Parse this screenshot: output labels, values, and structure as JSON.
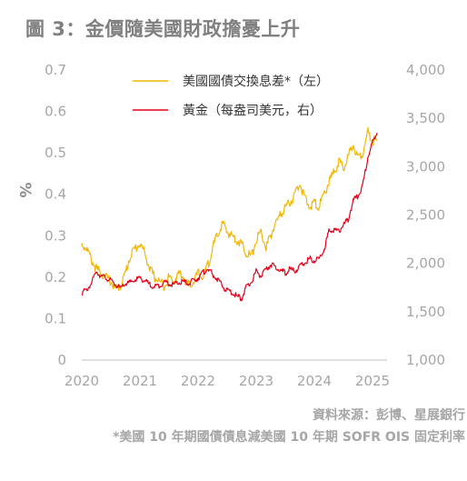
{
  "title": "圖 3：金價隨美國財政擔憂上升",
  "source": "資料來源：彭博、星展銀行",
  "footnote": "*美國 10 年期國債債息減美國 10 年期 SOFR OIS 固定利率",
  "chart_data": {
    "type": "line",
    "x_ticks": [
      "2020",
      "2021",
      "2022",
      "2023",
      "2024",
      "2025"
    ],
    "xlim": [
      2020.0,
      2025.25
    ],
    "y_left": {
      "label": "%",
      "ticks": [
        "0",
        "0.1",
        "0.2",
        "0.3",
        "0.4",
        "0.5",
        "0.6",
        "0.7"
      ],
      "lim": [
        0,
        0.7
      ]
    },
    "y_right": {
      "ticks": [
        "1,000",
        "1,500",
        "2,000",
        "2,500",
        "3,000",
        "3,500",
        "4,000"
      ],
      "lim": [
        1000,
        4000
      ]
    },
    "legend_position": "top",
    "series": [
      {
        "name": "美國國債交換息差*（左）",
        "axis": "left",
        "color": "#f2b705",
        "x": [
          2020.0,
          2020.08,
          2020.17,
          2020.25,
          2020.33,
          2020.42,
          2020.5,
          2020.58,
          2020.67,
          2020.75,
          2020.83,
          2020.92,
          2021.0,
          2021.08,
          2021.17,
          2021.25,
          2021.33,
          2021.42,
          2021.5,
          2021.58,
          2021.67,
          2021.75,
          2021.83,
          2021.92,
          2022.0,
          2022.08,
          2022.17,
          2022.25,
          2022.33,
          2022.42,
          2022.5,
          2022.58,
          2022.67,
          2022.75,
          2022.83,
          2022.92,
          2023.0,
          2023.08,
          2023.17,
          2023.25,
          2023.33,
          2023.42,
          2023.5,
          2023.58,
          2023.67,
          2023.75,
          2023.83,
          2023.92,
          2024.0,
          2024.08,
          2024.17,
          2024.25,
          2024.33,
          2024.42,
          2024.5,
          2024.58,
          2024.67,
          2024.75,
          2024.83,
          2024.92,
          2025.0,
          2025.08
        ],
        "values": [
          0.28,
          0.27,
          0.24,
          0.22,
          0.21,
          0.2,
          0.19,
          0.17,
          0.18,
          0.21,
          0.25,
          0.27,
          0.28,
          0.26,
          0.22,
          0.2,
          0.19,
          0.18,
          0.2,
          0.19,
          0.21,
          0.2,
          0.18,
          0.19,
          0.21,
          0.2,
          0.23,
          0.27,
          0.3,
          0.33,
          0.31,
          0.3,
          0.29,
          0.28,
          0.26,
          0.25,
          0.29,
          0.31,
          0.27,
          0.3,
          0.33,
          0.35,
          0.37,
          0.38,
          0.4,
          0.43,
          0.39,
          0.37,
          0.38,
          0.37,
          0.4,
          0.43,
          0.45,
          0.48,
          0.46,
          0.49,
          0.52,
          0.49,
          0.5,
          0.55,
          0.53,
          0.53
        ]
      },
      {
        "name": "黃金（每盎司美元，右）",
        "axis": "right",
        "color": "#e3001b",
        "x": [
          2020.0,
          2020.08,
          2020.17,
          2020.25,
          2020.33,
          2020.42,
          2020.5,
          2020.58,
          2020.67,
          2020.75,
          2020.83,
          2020.92,
          2021.0,
          2021.08,
          2021.17,
          2021.25,
          2021.33,
          2021.42,
          2021.5,
          2021.58,
          2021.67,
          2021.75,
          2021.83,
          2021.92,
          2022.0,
          2022.08,
          2022.17,
          2022.25,
          2022.33,
          2022.42,
          2022.5,
          2022.58,
          2022.67,
          2022.75,
          2022.83,
          2022.92,
          2023.0,
          2023.08,
          2023.17,
          2023.25,
          2023.33,
          2023.42,
          2023.5,
          2023.58,
          2023.67,
          2023.75,
          2023.83,
          2023.92,
          2024.0,
          2024.08,
          2024.17,
          2024.25,
          2024.33,
          2024.42,
          2024.5,
          2024.58,
          2024.67,
          2024.75,
          2024.83,
          2024.92,
          2025.0,
          2025.08
        ],
        "values": [
          1700,
          1720,
          1800,
          1920,
          1870,
          1850,
          1820,
          1780,
          1740,
          1790,
          1800,
          1830,
          1850,
          1820,
          1780,
          1760,
          1770,
          1810,
          1790,
          1780,
          1800,
          1810,
          1790,
          1820,
          1850,
          1900,
          1950,
          1880,
          1840,
          1760,
          1720,
          1700,
          1660,
          1640,
          1750,
          1810,
          1920,
          1870,
          1930,
          1990,
          1960,
          1930,
          1900,
          1940,
          1920,
          1970,
          2000,
          2050,
          2030,
          2050,
          2150,
          2330,
          2350,
          2330,
          2400,
          2450,
          2650,
          2700,
          2800,
          3100,
          3250,
          3350
        ]
      }
    ]
  }
}
